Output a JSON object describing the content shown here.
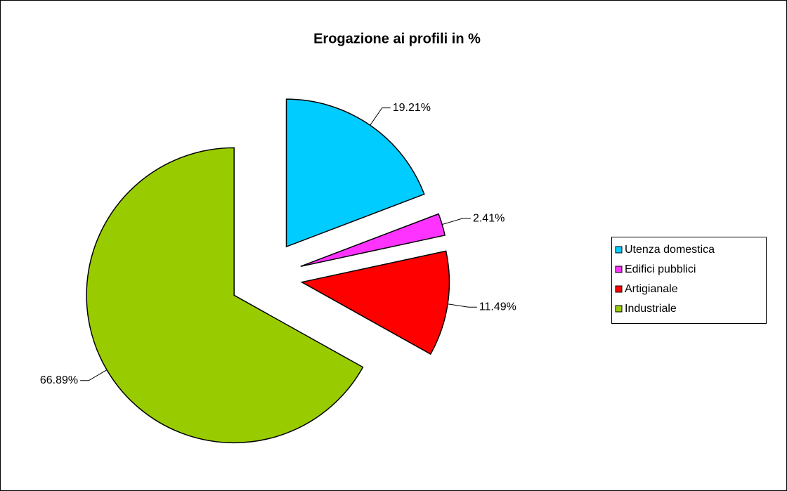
{
  "chart_data": {
    "type": "pie",
    "title": "Erogazione ai profili in %",
    "categories": [
      "Utenza domestica",
      "Edifici pubblici",
      "Artigianale",
      "Industriale"
    ],
    "values": [
      19.21,
      2.41,
      11.49,
      66.89
    ],
    "value_labels": [
      "19.21%",
      "2.41%",
      "11.49%",
      "66.89%"
    ],
    "colors": [
      "#00ccff",
      "#ff33ff",
      "#ff0000",
      "#99cc00"
    ],
    "legend": "right"
  }
}
